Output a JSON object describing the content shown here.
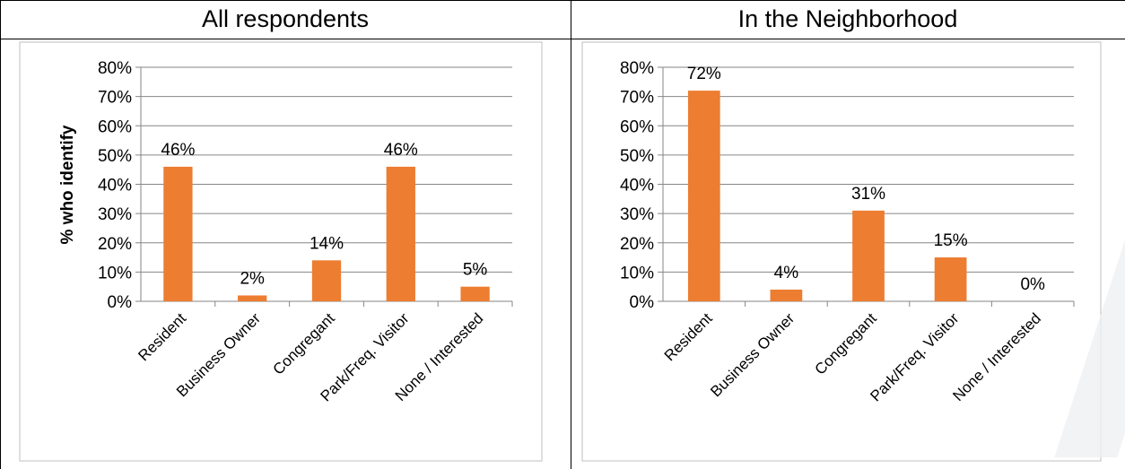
{
  "chart_data": [
    {
      "type": "bar",
      "title": "All respondents",
      "categories": [
        "Resident",
        "Business Owner",
        "Congregant",
        "Park/Freq. Visitor",
        "None / Interested"
      ],
      "values": [
        46,
        2,
        14,
        46,
        5
      ],
      "value_labels": [
        "46%",
        "2%",
        "14%",
        "46%",
        "5%"
      ],
      "ylabel": "% who identify",
      "ylim": [
        0,
        80
      ],
      "yticks": [
        "0%",
        "10%",
        "20%",
        "30%",
        "40%",
        "50%",
        "60%",
        "70%",
        "80%"
      ],
      "bar_color": "#ed7d31",
      "grid": true
    },
    {
      "type": "bar",
      "title": "In the Neighborhood",
      "categories": [
        "Resident",
        "Business Owner",
        "Congregant",
        "Park/Freq. Visitor",
        "None / Interested"
      ],
      "values": [
        72,
        4,
        31,
        15,
        0
      ],
      "value_labels": [
        "72%",
        "4%",
        "31%",
        "15%",
        "0%"
      ],
      "ylabel": "",
      "ylim": [
        0,
        80
      ],
      "yticks": [
        "0%",
        "10%",
        "20%",
        "30%",
        "40%",
        "50%",
        "60%",
        "70%",
        "80%"
      ],
      "bar_color": "#ed7d31",
      "grid": true
    }
  ]
}
